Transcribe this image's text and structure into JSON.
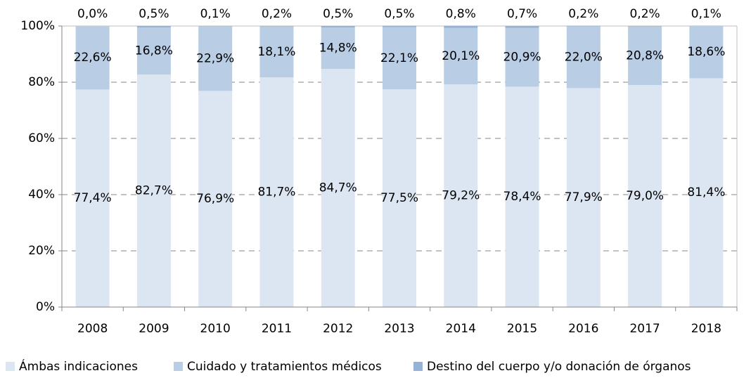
{
  "chart_data": {
    "type": "stacked_bar",
    "categories": [
      "2008",
      "2009",
      "2010",
      "2011",
      "2012",
      "2013",
      "2014",
      "2015",
      "2016",
      "2017",
      "2018"
    ],
    "series": [
      {
        "name": "Ámbas indicaciones",
        "color": "#dce6f2",
        "values": [
          77.4,
          82.7,
          76.9,
          81.7,
          84.7,
          77.5,
          79.2,
          78.4,
          77.9,
          79.0,
          81.4
        ],
        "value_labels": [
          "77,4%",
          "82,7%",
          "76,9%",
          "81,7%",
          "84,7%",
          "77,5%",
          "79,2%",
          "78,4%",
          "77,9%",
          "79,0%",
          "81,4%"
        ]
      },
      {
        "name": "Cuidado y tratamientos médicos",
        "color": "#b9cde5",
        "values": [
          22.6,
          16.8,
          22.9,
          18.1,
          14.8,
          22.1,
          20.1,
          20.9,
          22.0,
          20.8,
          18.6
        ],
        "value_labels": [
          "22,6%",
          "16,8%",
          "22,9%",
          "18,1%",
          "14,8%",
          "22,1%",
          "20,1%",
          "20,9%",
          "22,0%",
          "20,8%",
          "18,6%"
        ]
      },
      {
        "name": "Destino del cuerpo y/o donación de órganos",
        "color": "#95b3d7",
        "values": [
          0.0,
          0.5,
          0.1,
          0.2,
          0.5,
          0.5,
          0.8,
          0.7,
          0.2,
          0.2,
          0.1
        ],
        "value_labels": [
          "0,0%",
          "0,5%",
          "0,1%",
          "0,2%",
          "0,5%",
          "0,5%",
          "0,8%",
          "0,7%",
          "0,2%",
          "0,2%",
          "0,1%"
        ]
      }
    ],
    "ylim": [
      0,
      100
    ],
    "yticks": [
      {
        "value": 0,
        "label": "0%"
      },
      {
        "value": 20,
        "label": "20%"
      },
      {
        "value": 40,
        "label": "40%"
      },
      {
        "value": 60,
        "label": "60%"
      },
      {
        "value": 80,
        "label": "80%"
      },
      {
        "value": 100,
        "label": "100%"
      }
    ],
    "grid": true,
    "legend": "bottom"
  }
}
